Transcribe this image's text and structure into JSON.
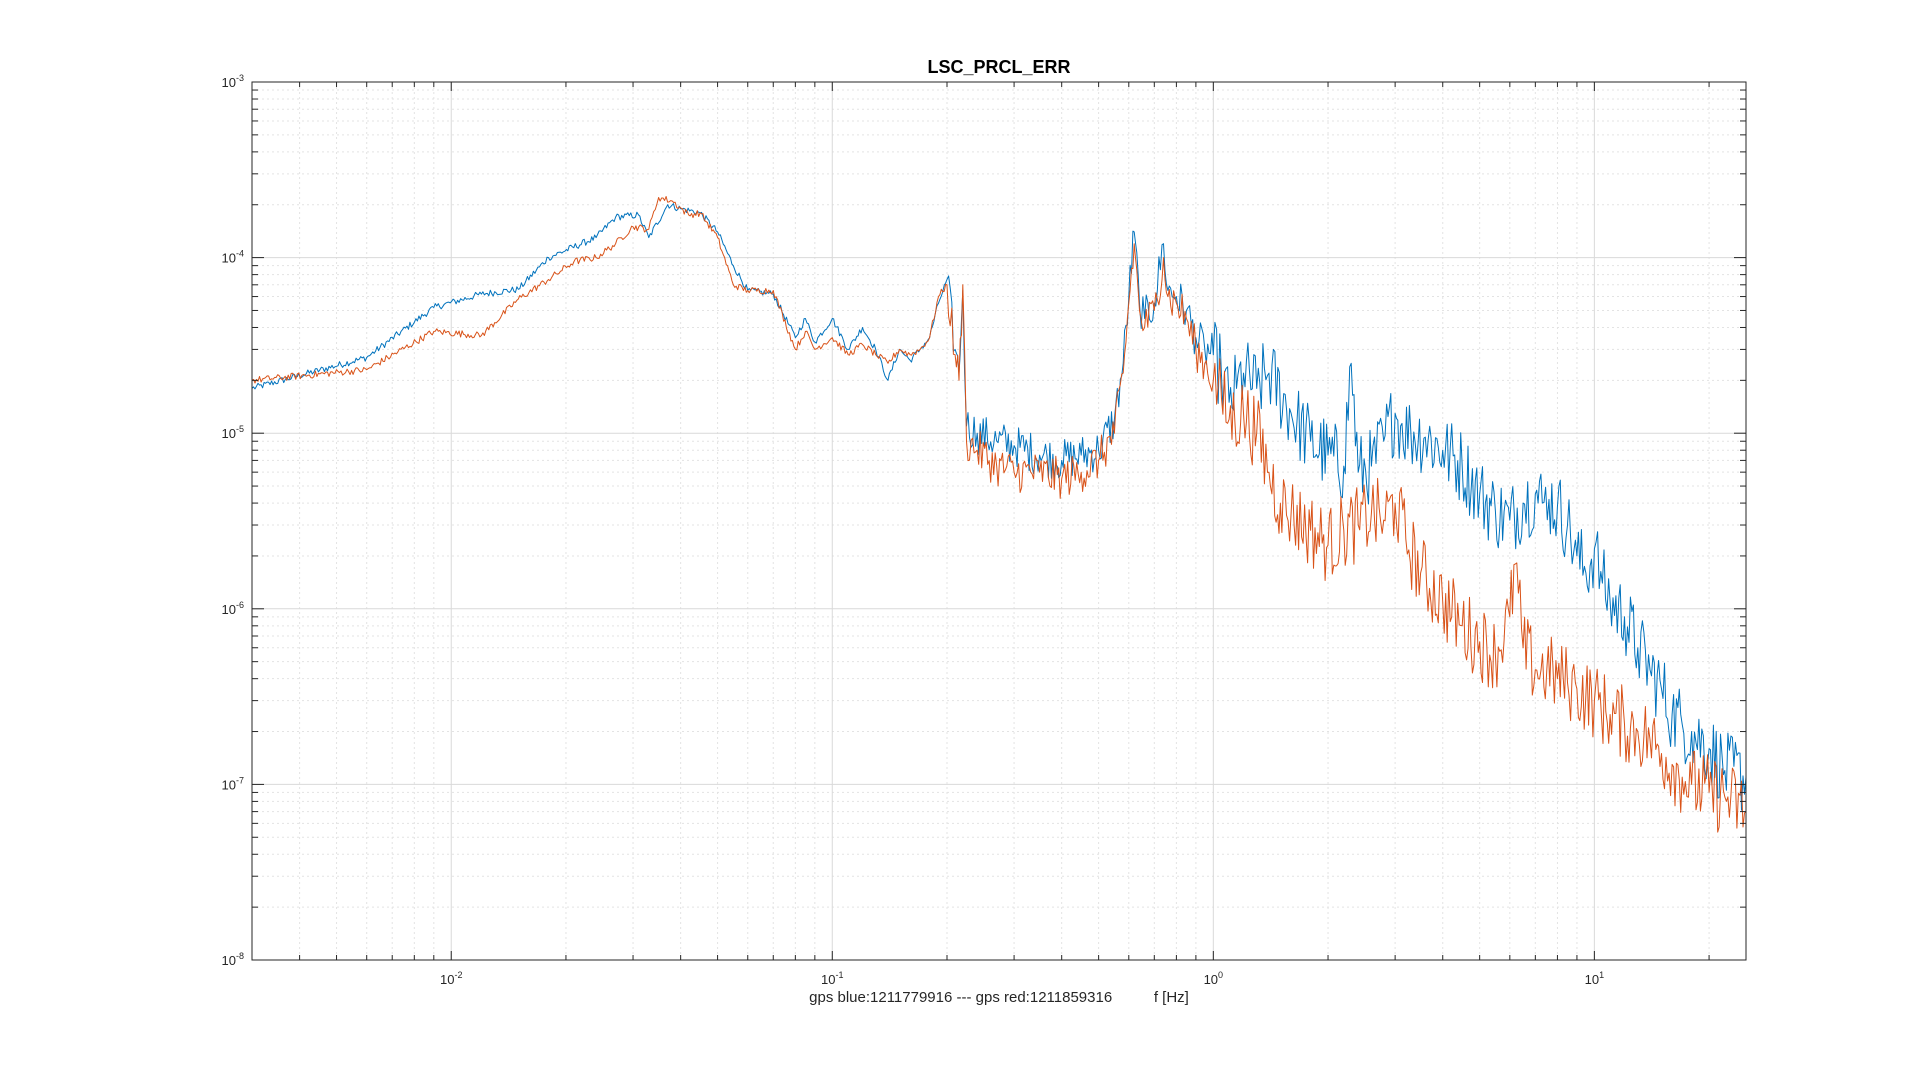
{
  "chart_data": {
    "type": "line",
    "title": "LSC_PRCL_ERR",
    "xlabel": "gps blue:1211779916 --- gps red:1211859316          f [Hz]",
    "ylabel": "",
    "x_scale": "log",
    "y_scale": "log",
    "xlim": [
      0.003,
      25
    ],
    "ylim": [
      1e-08,
      0.001
    ],
    "grid": true,
    "minor_grid": true,
    "x_ticks": [
      {
        "value": 0.01,
        "base": "10",
        "exp": "-2"
      },
      {
        "value": 0.1,
        "base": "10",
        "exp": "-1"
      },
      {
        "value": 1,
        "base": "10",
        "exp": "0"
      },
      {
        "value": 10,
        "base": "10",
        "exp": "1"
      }
    ],
    "y_ticks": [
      {
        "value": 1e-08,
        "base": "10",
        "exp": "-8"
      },
      {
        "value": 1e-07,
        "base": "10",
        "exp": "-7"
      },
      {
        "value": 1e-06,
        "base": "10",
        "exp": "-6"
      },
      {
        "value": 1e-05,
        "base": "10",
        "exp": "-5"
      },
      {
        "value": 0.0001,
        "base": "10",
        "exp": "-4"
      },
      {
        "value": 0.001,
        "base": "10",
        "exp": "-3"
      }
    ],
    "series": [
      {
        "color": "#0072BD",
        "x": [
          0.003,
          0.006,
          0.009,
          0.012,
          0.015,
          0.018,
          0.024,
          0.027,
          0.031,
          0.033,
          0.037,
          0.04,
          0.045,
          0.05,
          0.055,
          0.06,
          0.07,
          0.08,
          0.085,
          0.09,
          0.1,
          0.11,
          0.12,
          0.13,
          0.14,
          0.15,
          0.16,
          0.17,
          0.18,
          0.19,
          0.2,
          0.21,
          0.215,
          0.22,
          0.225,
          0.24,
          0.27,
          0.3,
          0.35,
          0.4,
          0.45,
          0.5,
          0.55,
          0.58,
          0.6,
          0.62,
          0.64,
          0.66,
          0.7,
          0.74,
          0.76,
          0.8,
          0.85,
          0.9,
          0.95,
          1.0,
          1.05,
          1.1,
          1.15,
          1.2,
          1.3,
          1.4,
          1.6,
          1.8,
          2.0,
          2.2,
          2.3,
          2.4,
          2.6,
          2.8,
          3.0,
          3.1,
          3.3,
          3.6,
          4.0,
          4.5,
          5.0,
          5.5,
          6.0,
          6.5,
          7.0,
          7.3,
          7.6,
          8.0,
          8.5,
          9.0,
          9.5,
          10.0,
          10.5,
          11.0,
          12.0,
          13.0,
          14.0,
          15.0,
          16.0,
          17.0,
          18.0,
          20.0,
          22.0,
          25.0
        ],
        "y": [
          1.8e-05,
          2.7e-05,
          5.2e-05,
          6.2e-05,
          6.6e-05,
          0.0001,
          0.00013,
          0.00017,
          0.000175,
          0.00013,
          0.0002,
          0.00019,
          0.00018,
          0.00014,
          9e-05,
          6.5e-05,
          6.2e-05,
          3.5e-05,
          4.5e-05,
          3.3e-05,
          4.5e-05,
          3e-05,
          4e-05,
          3e-05,
          2e-05,
          3e-05,
          2.6e-05,
          3e-05,
          3.5e-05,
          5.5e-05,
          7.5e-05,
          3e-05,
          2.2e-05,
          6.5e-05,
          1.1e-05,
          1e-05,
          9e-06,
          8.5e-06,
          7.5e-06,
          7e-06,
          7.5e-06,
          8e-06,
          1.2e-05,
          2.5e-05,
          6e-05,
          0.00014,
          5.5e-05,
          4.5e-05,
          5.5e-05,
          0.00012,
          6.5e-05,
          6e-05,
          5e-05,
          3.5e-05,
          3e-05,
          2.8e-05,
          2.2e-05,
          1.5e-05,
          1.8e-05,
          2.2e-05,
          1.8e-05,
          2.2e-05,
          1.3e-05,
          9e-06,
          7.5e-06,
          6.5e-06,
          2.5e-05,
          6e-06,
          6.5e-06,
          9e-06,
          1.3e-05,
          1.1e-05,
          1e-05,
          9.5e-06,
          8e-06,
          6.5e-06,
          4.5e-06,
          3.6e-06,
          3.2e-06,
          4e-06,
          4.5e-06,
          4e-06,
          4.2e-06,
          3.8e-06,
          3e-06,
          2e-06,
          1.6e-06,
          2.2e-06,
          1.4e-06,
          1.1e-06,
          9e-07,
          6e-07,
          4.5e-07,
          3.5e-07,
          2.5e-07,
          2.2e-07,
          2e-07,
          1.6e-07,
          1.2e-07,
          1.1e-07
        ]
      },
      {
        "color": "#D95319",
        "x": [
          0.003,
          0.006,
          0.009,
          0.012,
          0.015,
          0.018,
          0.021,
          0.024,
          0.027,
          0.03,
          0.033,
          0.035,
          0.038,
          0.042,
          0.045,
          0.05,
          0.055,
          0.06,
          0.07,
          0.08,
          0.085,
          0.09,
          0.1,
          0.11,
          0.12,
          0.13,
          0.14,
          0.15,
          0.16,
          0.17,
          0.18,
          0.19,
          0.2,
          0.21,
          0.215,
          0.22,
          0.225,
          0.24,
          0.27,
          0.3,
          0.35,
          0.4,
          0.45,
          0.5,
          0.55,
          0.58,
          0.6,
          0.62,
          0.64,
          0.66,
          0.7,
          0.74,
          0.76,
          0.8,
          0.85,
          0.9,
          0.95,
          1.0,
          1.05,
          1.1,
          1.2,
          1.3,
          1.4,
          1.5,
          1.6,
          1.8,
          2.0,
          2.2,
          2.4,
          2.6,
          2.8,
          3.0,
          3.2,
          3.5,
          4.0,
          4.5,
          5.0,
          5.5,
          6.0,
          6.2,
          6.5,
          7.0,
          7.5,
          8.0,
          8.5,
          9.0,
          10.0,
          11.0,
          12.0,
          13.0,
          14.0,
          15.0,
          16.0,
          17.0,
          18.0,
          20.0,
          22.0,
          25.0
        ],
        "y": [
          2e-05,
          2.3e-05,
          3.8e-05,
          3.6e-05,
          5.8e-05,
          7.5e-05,
          9.5e-05,
          0.0001,
          0.00012,
          0.00015,
          0.000145,
          0.00022,
          0.00021,
          0.000175,
          0.00018,
          0.00013,
          7e-05,
          6.5e-05,
          6.5e-05,
          3e-05,
          3.8e-05,
          3e-05,
          3.5e-05,
          2.8e-05,
          3.2e-05,
          2.8e-05,
          2.5e-05,
          3e-05,
          2.8e-05,
          3e-05,
          3.5e-05,
          6e-05,
          7e-05,
          2.8e-05,
          2e-05,
          7e-05,
          9e-06,
          8e-06,
          6.5e-06,
          6e-06,
          6e-06,
          5.5e-06,
          6e-06,
          7e-06,
          1e-05,
          2.2e-05,
          5.5e-05,
          0.00012,
          5e-05,
          4e-05,
          5e-05,
          0.0001,
          6e-05,
          5.5e-05,
          4.5e-05,
          3e-05,
          2.5e-05,
          2e-05,
          1.6e-05,
          1.2e-05,
          1.3e-05,
          1e-05,
          6e-06,
          4e-06,
          3.5e-06,
          2.8e-06,
          2.3e-06,
          2.8e-06,
          3e-06,
          3.5e-06,
          3.2e-06,
          4e-06,
          2.5e-06,
          1.6e-06,
          1.1e-06,
          8e-07,
          6.5e-07,
          5.5e-07,
          9e-07,
          1.8e-06,
          6e-07,
          4.5e-07,
          4.5e-07,
          4e-07,
          3.8e-07,
          3.5e-07,
          3e-07,
          2.5e-07,
          2.2e-07,
          2e-07,
          1.8e-07,
          1.5e-07,
          1.3e-07,
          1.1e-07,
          1e-07,
          9e-08,
          8.5e-08,
          7e-08
        ]
      }
    ]
  }
}
